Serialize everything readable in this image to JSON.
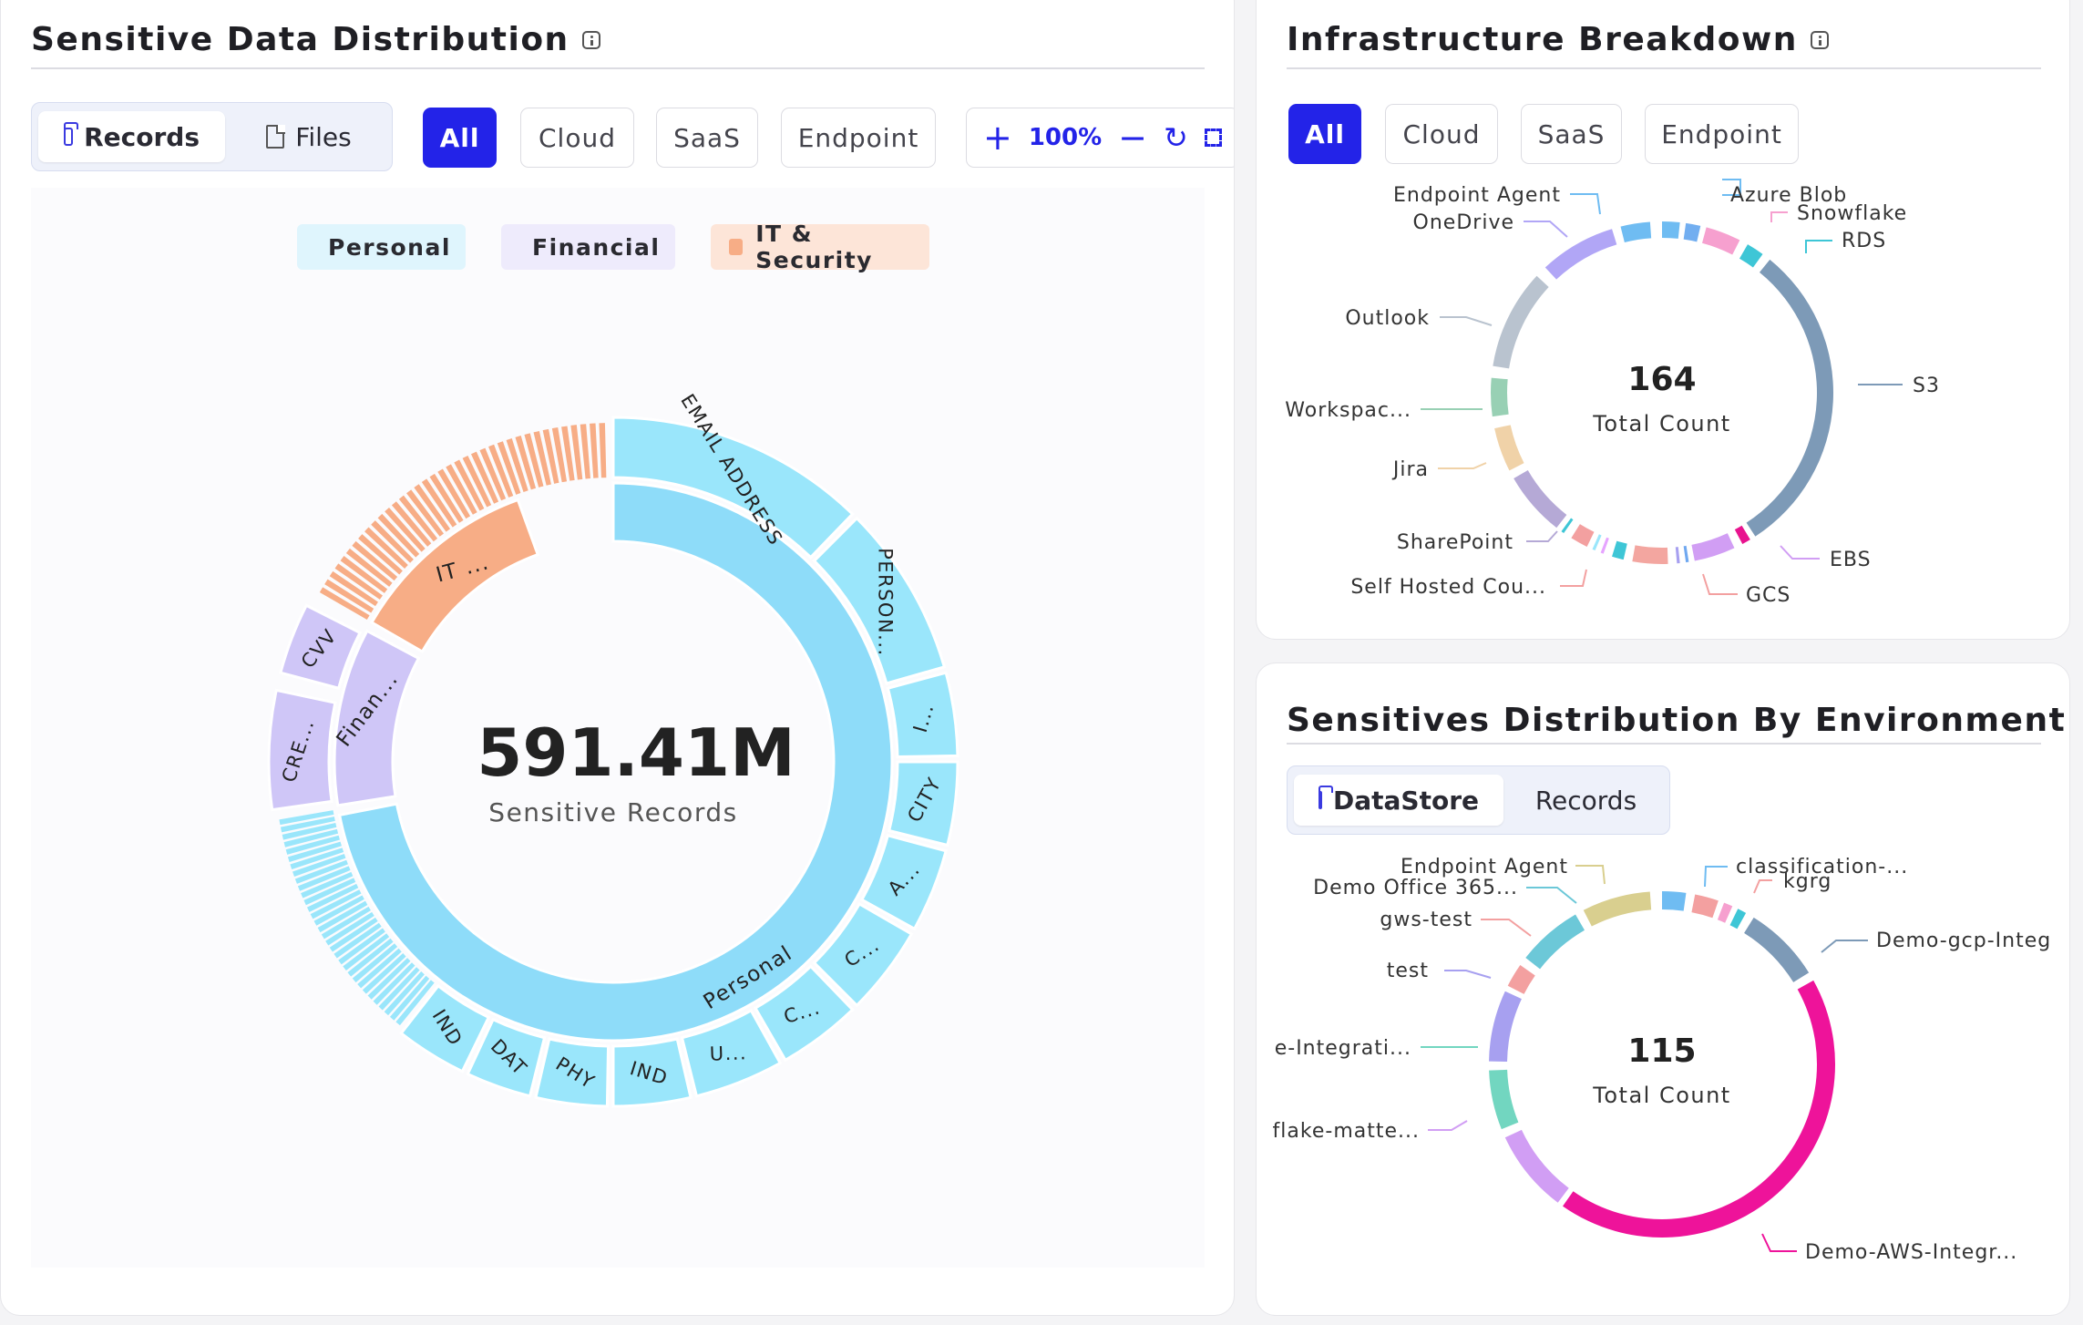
{
  "left": {
    "title": "Sensitive Data Distribution",
    "view_tabs": [
      "Records",
      "Files"
    ],
    "filters": [
      "All",
      "Cloud",
      "SaaS",
      "Endpoint"
    ],
    "zoom": "100%",
    "legend": [
      {
        "label": "Personal",
        "color": "#8edcf9"
      },
      {
        "label": "Financial",
        "color": "#cfc6f7"
      },
      {
        "label": "IT & Security",
        "color": "#f7ad86"
      }
    ],
    "center_value": "591.41M",
    "center_label": "Sensitive Records",
    "inner_labels": [
      "Personal",
      "Finan...",
      "IT ..."
    ],
    "outer_labels": [
      "EMAIL ADDRESS",
      "PERSON...",
      "I...",
      "CITY",
      "A...",
      "C...",
      "C...",
      "U...",
      "IND",
      "PHY",
      "DAT",
      "IND",
      "CRE...",
      "CVV"
    ]
  },
  "infra": {
    "title": "Infrastructure Breakdown",
    "filters": [
      "All",
      "Cloud",
      "SaaS",
      "Endpoint"
    ],
    "center_value": "164",
    "center_label": "Total Count",
    "labels": [
      "Azure Blob",
      "Snowflake",
      "RDS",
      "S3",
      "EBS",
      "GCS",
      "Self Hosted Cou...",
      "SharePoint",
      "Jira",
      "Workspac...",
      "Outlook",
      "OneDrive",
      "Endpoint Agent"
    ]
  },
  "env": {
    "title": "Sensitives Distribution By Environment",
    "view_tabs": [
      "DataStore",
      "Records"
    ],
    "center_value": "115",
    "center_label": "Total Count",
    "labels": [
      "classification-...",
      "kgrg",
      "Demo-gcp-Integ",
      "Demo-AWS-Integr...",
      "flake-matte...",
      "e-Integrati...",
      "test",
      "gws-test",
      "Demo Office 365...",
      "Endpoint Agent"
    ]
  }
}
